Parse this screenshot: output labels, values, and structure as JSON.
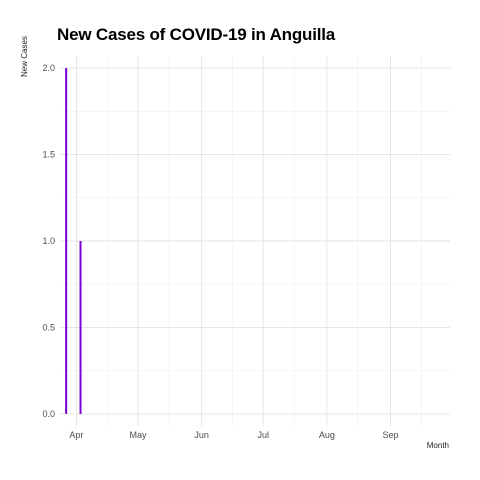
{
  "chart_data": {
    "type": "bar",
    "title": "New Cases of COVID-19 in Anguilla",
    "xlabel": "Month",
    "ylabel": "New Cases",
    "x": [
      "2020-03-27",
      "2020-04-03"
    ],
    "values": [
      2,
      1
    ],
    "xlim": [
      "2020-03-24",
      "2020-09-30"
    ],
    "ylim": [
      -0.07,
      2.07
    ],
    "x_ticks": [
      {
        "label": "Apr",
        "date": "2020-04-01"
      },
      {
        "label": "May",
        "date": "2020-05-01"
      },
      {
        "label": "Jun",
        "date": "2020-06-01"
      },
      {
        "label": "Jul",
        "date": "2020-07-01"
      },
      {
        "label": "Aug",
        "date": "2020-08-01"
      },
      {
        "label": "Sep",
        "date": "2020-09-01"
      }
    ],
    "y_ticks": [
      0.0,
      0.5,
      1.0,
      1.5,
      2.0
    ],
    "y_tick_labels": [
      "0.0",
      "0.5",
      "1.0",
      "1.5",
      "2.0"
    ],
    "bar_color": "#7B00D4",
    "grid": true,
    "legend": "none"
  }
}
